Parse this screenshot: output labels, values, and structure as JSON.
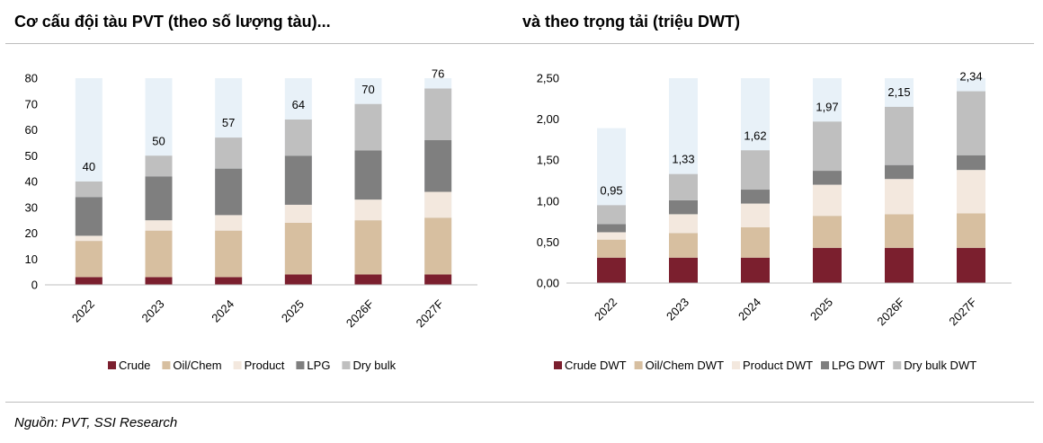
{
  "titles": {
    "left": "Cơ cấu đội tàu PVT (theo số lượng tàu)...",
    "right": "và theo trọng tải (triệu DWT)"
  },
  "source": "Nguồn: PVT, SSI Research",
  "colors": {
    "background_bar": "#e8f1f8",
    "crude": "#7b1f2e",
    "oil_chem": "#d7bfa0",
    "product": "#f3e8de",
    "lpg": "#7f7f7f",
    "dry_bulk": "#bfbfbf"
  },
  "chart_data": [
    {
      "type": "bar",
      "stacked": true,
      "categories": [
        "2022",
        "2023",
        "2024",
        "2025",
        "2026F",
        "2027F"
      ],
      "series": [
        {
          "name": "Crude",
          "color": "#7b1f2e",
          "values": [
            3,
            3,
            3,
            4,
            4,
            4
          ]
        },
        {
          "name": "Oil/Chem",
          "color": "#d7bfa0",
          "values": [
            14,
            18,
            18,
            20,
            21,
            22
          ]
        },
        {
          "name": "Product",
          "color": "#f3e8de",
          "values": [
            2,
            4,
            6,
            7,
            8,
            10
          ]
        },
        {
          "name": "LPG",
          "color": "#7f7f7f",
          "values": [
            15,
            17,
            18,
            19,
            19,
            20
          ]
        },
        {
          "name": "Dry bulk",
          "color": "#bfbfbf",
          "values": [
            6,
            8,
            12,
            14,
            18,
            20
          ]
        }
      ],
      "totals": [
        40,
        50,
        57,
        64,
        70,
        76
      ],
      "total_labels": [
        "40",
        "50",
        "57",
        "64",
        "70",
        "76"
      ],
      "background_values": [
        80,
        80,
        80,
        80,
        80,
        80
      ],
      "ylim": [
        0,
        80
      ],
      "yticks": [
        0,
        10,
        20,
        30,
        40,
        50,
        60,
        70,
        80
      ],
      "ytick_labels": [
        "0",
        "10",
        "20",
        "30",
        "40",
        "50",
        "60",
        "70",
        "80"
      ],
      "legend": "bottom",
      "grid": false
    },
    {
      "type": "bar",
      "stacked": true,
      "categories": [
        "2022",
        "2023",
        "2024",
        "2025",
        "2026F",
        "2027F"
      ],
      "series": [
        {
          "name": "Crude DWT",
          "color": "#7b1f2e",
          "values": [
            0.31,
            0.31,
            0.31,
            0.43,
            0.43,
            0.43
          ]
        },
        {
          "name": "Oil/Chem DWT",
          "color": "#d7bfa0",
          "values": [
            0.22,
            0.3,
            0.37,
            0.39,
            0.41,
            0.42
          ]
        },
        {
          "name": "Product DWT",
          "color": "#f3e8de",
          "values": [
            0.09,
            0.23,
            0.29,
            0.38,
            0.43,
            0.53
          ]
        },
        {
          "name": "LPG DWT",
          "color": "#7f7f7f",
          "values": [
            0.1,
            0.17,
            0.17,
            0.17,
            0.17,
            0.18
          ]
        },
        {
          "name": "Dry bulk DWT",
          "color": "#bfbfbf",
          "values": [
            0.23,
            0.32,
            0.48,
            0.6,
            0.71,
            0.78
          ]
        }
      ],
      "totals": [
        0.95,
        1.33,
        1.62,
        1.97,
        2.15,
        2.34
      ],
      "total_labels": [
        "0,95",
        "1,33",
        "1,62",
        "1,97",
        "2,15",
        "2,34"
      ],
      "background_values": [
        1.89,
        2.5,
        2.5,
        2.5,
        2.5,
        2.5
      ],
      "ylim": [
        0,
        2.5
      ],
      "yticks": [
        0,
        0.5,
        1.0,
        1.5,
        2.0,
        2.5
      ],
      "ytick_labels": [
        "0,00",
        "0,50",
        "1,00",
        "1,50",
        "2,00",
        "2,50"
      ],
      "legend": "bottom",
      "grid": false
    }
  ]
}
